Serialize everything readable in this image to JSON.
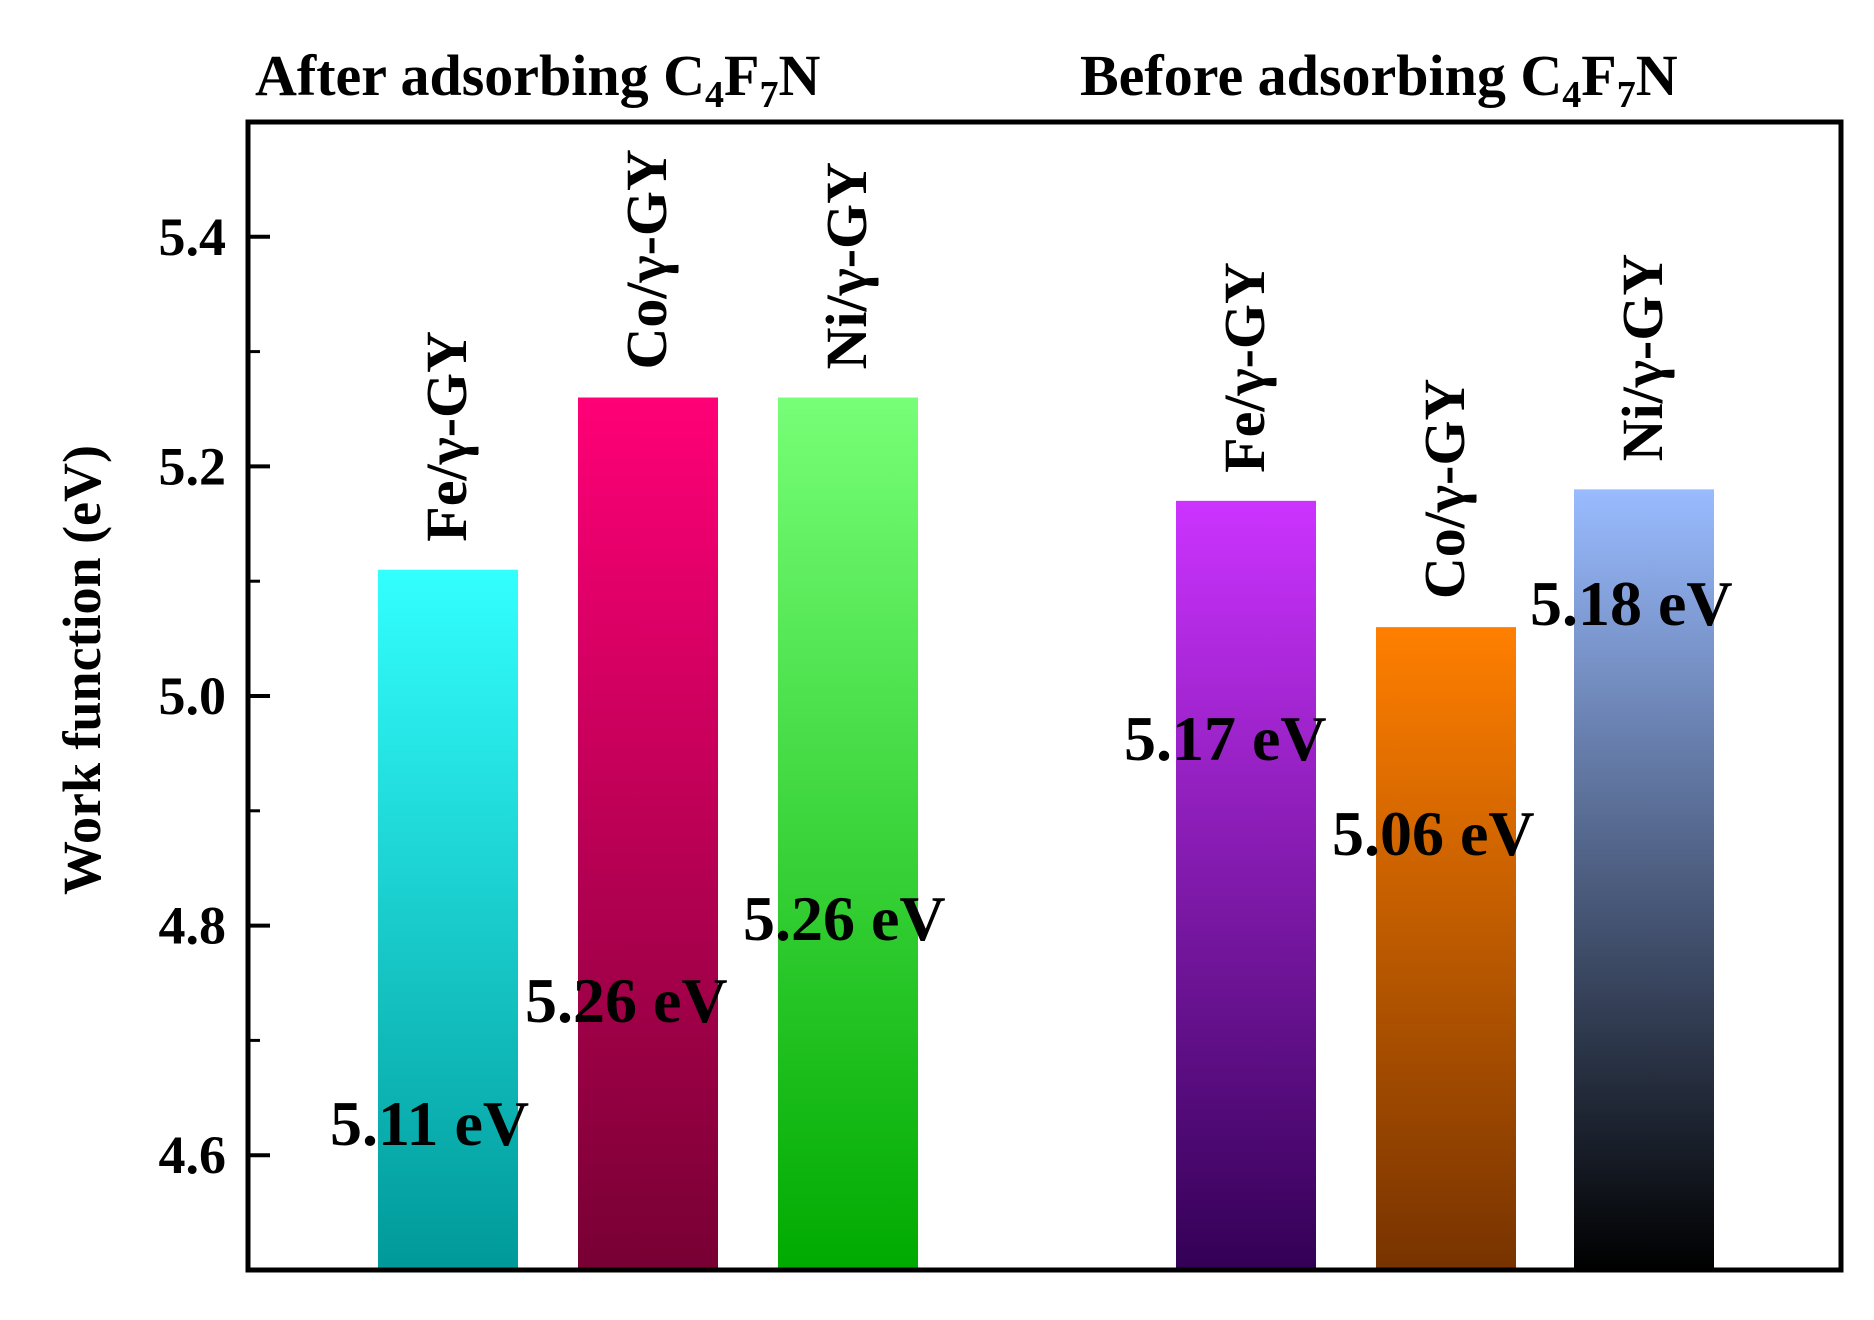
{
  "chart_data": {
    "type": "bar",
    "ylabel": "Work function (eV)",
    "ylim": [
      4.5,
      5.5
    ],
    "yticks": [
      "4.6",
      "4.8",
      "5.0",
      "5.2",
      "5.4"
    ],
    "ytick_values": [
      4.6,
      4.8,
      5.0,
      5.2,
      5.4
    ],
    "groups": [
      {
        "title": "After adsorbing C₄F₇N",
        "title_parts": [
          "After adsorbing C",
          "4",
          "F",
          "7",
          "N"
        ],
        "bars": [
          {
            "label": "Fe/γ-GY",
            "value": 5.11,
            "value_label": "5.11 eV",
            "color_top": "#33ffff",
            "color_bottom": "#009999"
          },
          {
            "label": "Co/γ-GY",
            "value": 5.26,
            "value_label": "5.26 eV",
            "color_top": "#ff0077",
            "color_bottom": "#770033"
          },
          {
            "label": "Ni/γ-GY",
            "value": 5.26,
            "value_label": "5.26 eV",
            "color_top": "#77ff77",
            "color_bottom": "#00aa00"
          }
        ]
      },
      {
        "title": "Before adsorbing C₄F₇N",
        "title_parts": [
          "Before adsorbing C",
          "4",
          "F",
          "7",
          "N"
        ],
        "bars": [
          {
            "label": "Fe/γ-GY",
            "value": 5.17,
            "value_label": "5.17 eV",
            "color_top": "#cc33ff",
            "color_bottom": "#330055"
          },
          {
            "label": "Co/γ-GY",
            "value": 5.06,
            "value_label": "5.06 eV",
            "color_top": "#ff7f00",
            "color_bottom": "#773300"
          },
          {
            "label": "Ni/γ-GY",
            "value": 5.18,
            "value_label": "5.18 eV",
            "color_top": "#99bbff",
            "color_bottom": "#000000"
          }
        ]
      }
    ]
  }
}
